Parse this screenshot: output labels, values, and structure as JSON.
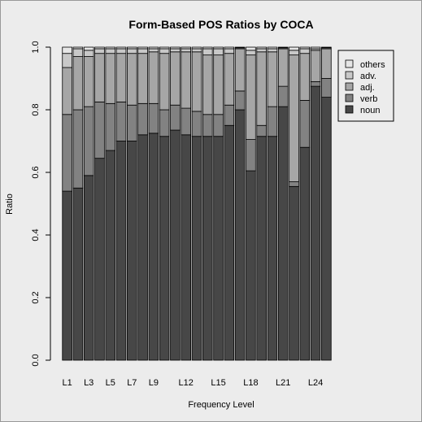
{
  "chart_data": {
    "type": "bar",
    "stacked": true,
    "title": "Form-Based POS Ratios by COCA",
    "xlabel": "Frequency Level",
    "ylabel": "Ratio",
    "ylim": [
      0,
      1
    ],
    "yticks": [
      "0.0",
      "0.2",
      "0.4",
      "0.6",
      "0.8",
      "1.0"
    ],
    "categories": [
      "L1",
      "L2",
      "L3",
      "L4",
      "L5",
      "L6",
      "L7",
      "L8",
      "L9",
      "L10",
      "L11",
      "L12",
      "L13",
      "L14",
      "L15",
      "L16",
      "L17",
      "L18",
      "L19",
      "L20",
      "L21",
      "L22",
      "L23",
      "L24",
      "L25"
    ],
    "shown_tick_labels": [
      "L1",
      "L3",
      "L5",
      "L7",
      "L9",
      "L12",
      "L15",
      "L18",
      "L21",
      "L24"
    ],
    "legend_position": "top-right",
    "series": [
      {
        "name": "noun",
        "color": "#474747",
        "values": [
          0.54,
          0.55,
          0.59,
          0.645,
          0.67,
          0.7,
          0.7,
          0.72,
          0.725,
          0.715,
          0.735,
          0.72,
          0.715,
          0.715,
          0.715,
          0.75,
          0.8,
          0.605,
          0.715,
          0.715,
          0.81,
          0.555,
          0.68,
          0.875,
          0.84
        ]
      },
      {
        "name": "verb",
        "color": "#828282",
        "values": [
          0.245,
          0.25,
          0.22,
          0.18,
          0.15,
          0.125,
          0.115,
          0.1,
          0.095,
          0.085,
          0.08,
          0.085,
          0.08,
          0.07,
          0.07,
          0.065,
          0.06,
          0.1,
          0.035,
          0.095,
          0.065,
          0.015,
          0.15,
          0.015,
          0.06
        ]
      },
      {
        "name": "adj.",
        "color": "#a6a6a6",
        "values": [
          0.15,
          0.17,
          0.16,
          0.155,
          0.16,
          0.155,
          0.165,
          0.16,
          0.165,
          0.18,
          0.17,
          0.18,
          0.19,
          0.19,
          0.19,
          0.165,
          0.135,
          0.27,
          0.235,
          0.175,
          0.12,
          0.405,
          0.15,
          0.1,
          0.095
        ]
      },
      {
        "name": "adv.",
        "color": "#c8c8c8",
        "values": [
          0.045,
          0.025,
          0.02,
          0.015,
          0.015,
          0.015,
          0.015,
          0.015,
          0.01,
          0.015,
          0.01,
          0.01,
          0.01,
          0.02,
          0.02,
          0.015,
          0.003,
          0.015,
          0.01,
          0.01,
          0.003,
          0.015,
          0.015,
          0.005,
          0.003
        ]
      },
      {
        "name": "others",
        "color": "#e6e6e6",
        "values": [
          0.02,
          0.005,
          0.01,
          0.005,
          0.005,
          0.005,
          0.005,
          0.005,
          0.005,
          0.005,
          0.005,
          0.005,
          0.005,
          0.005,
          0.005,
          0.005,
          0.002,
          0.01,
          0.005,
          0.005,
          0.002,
          0.01,
          0.005,
          0.005,
          0.002
        ]
      }
    ]
  }
}
